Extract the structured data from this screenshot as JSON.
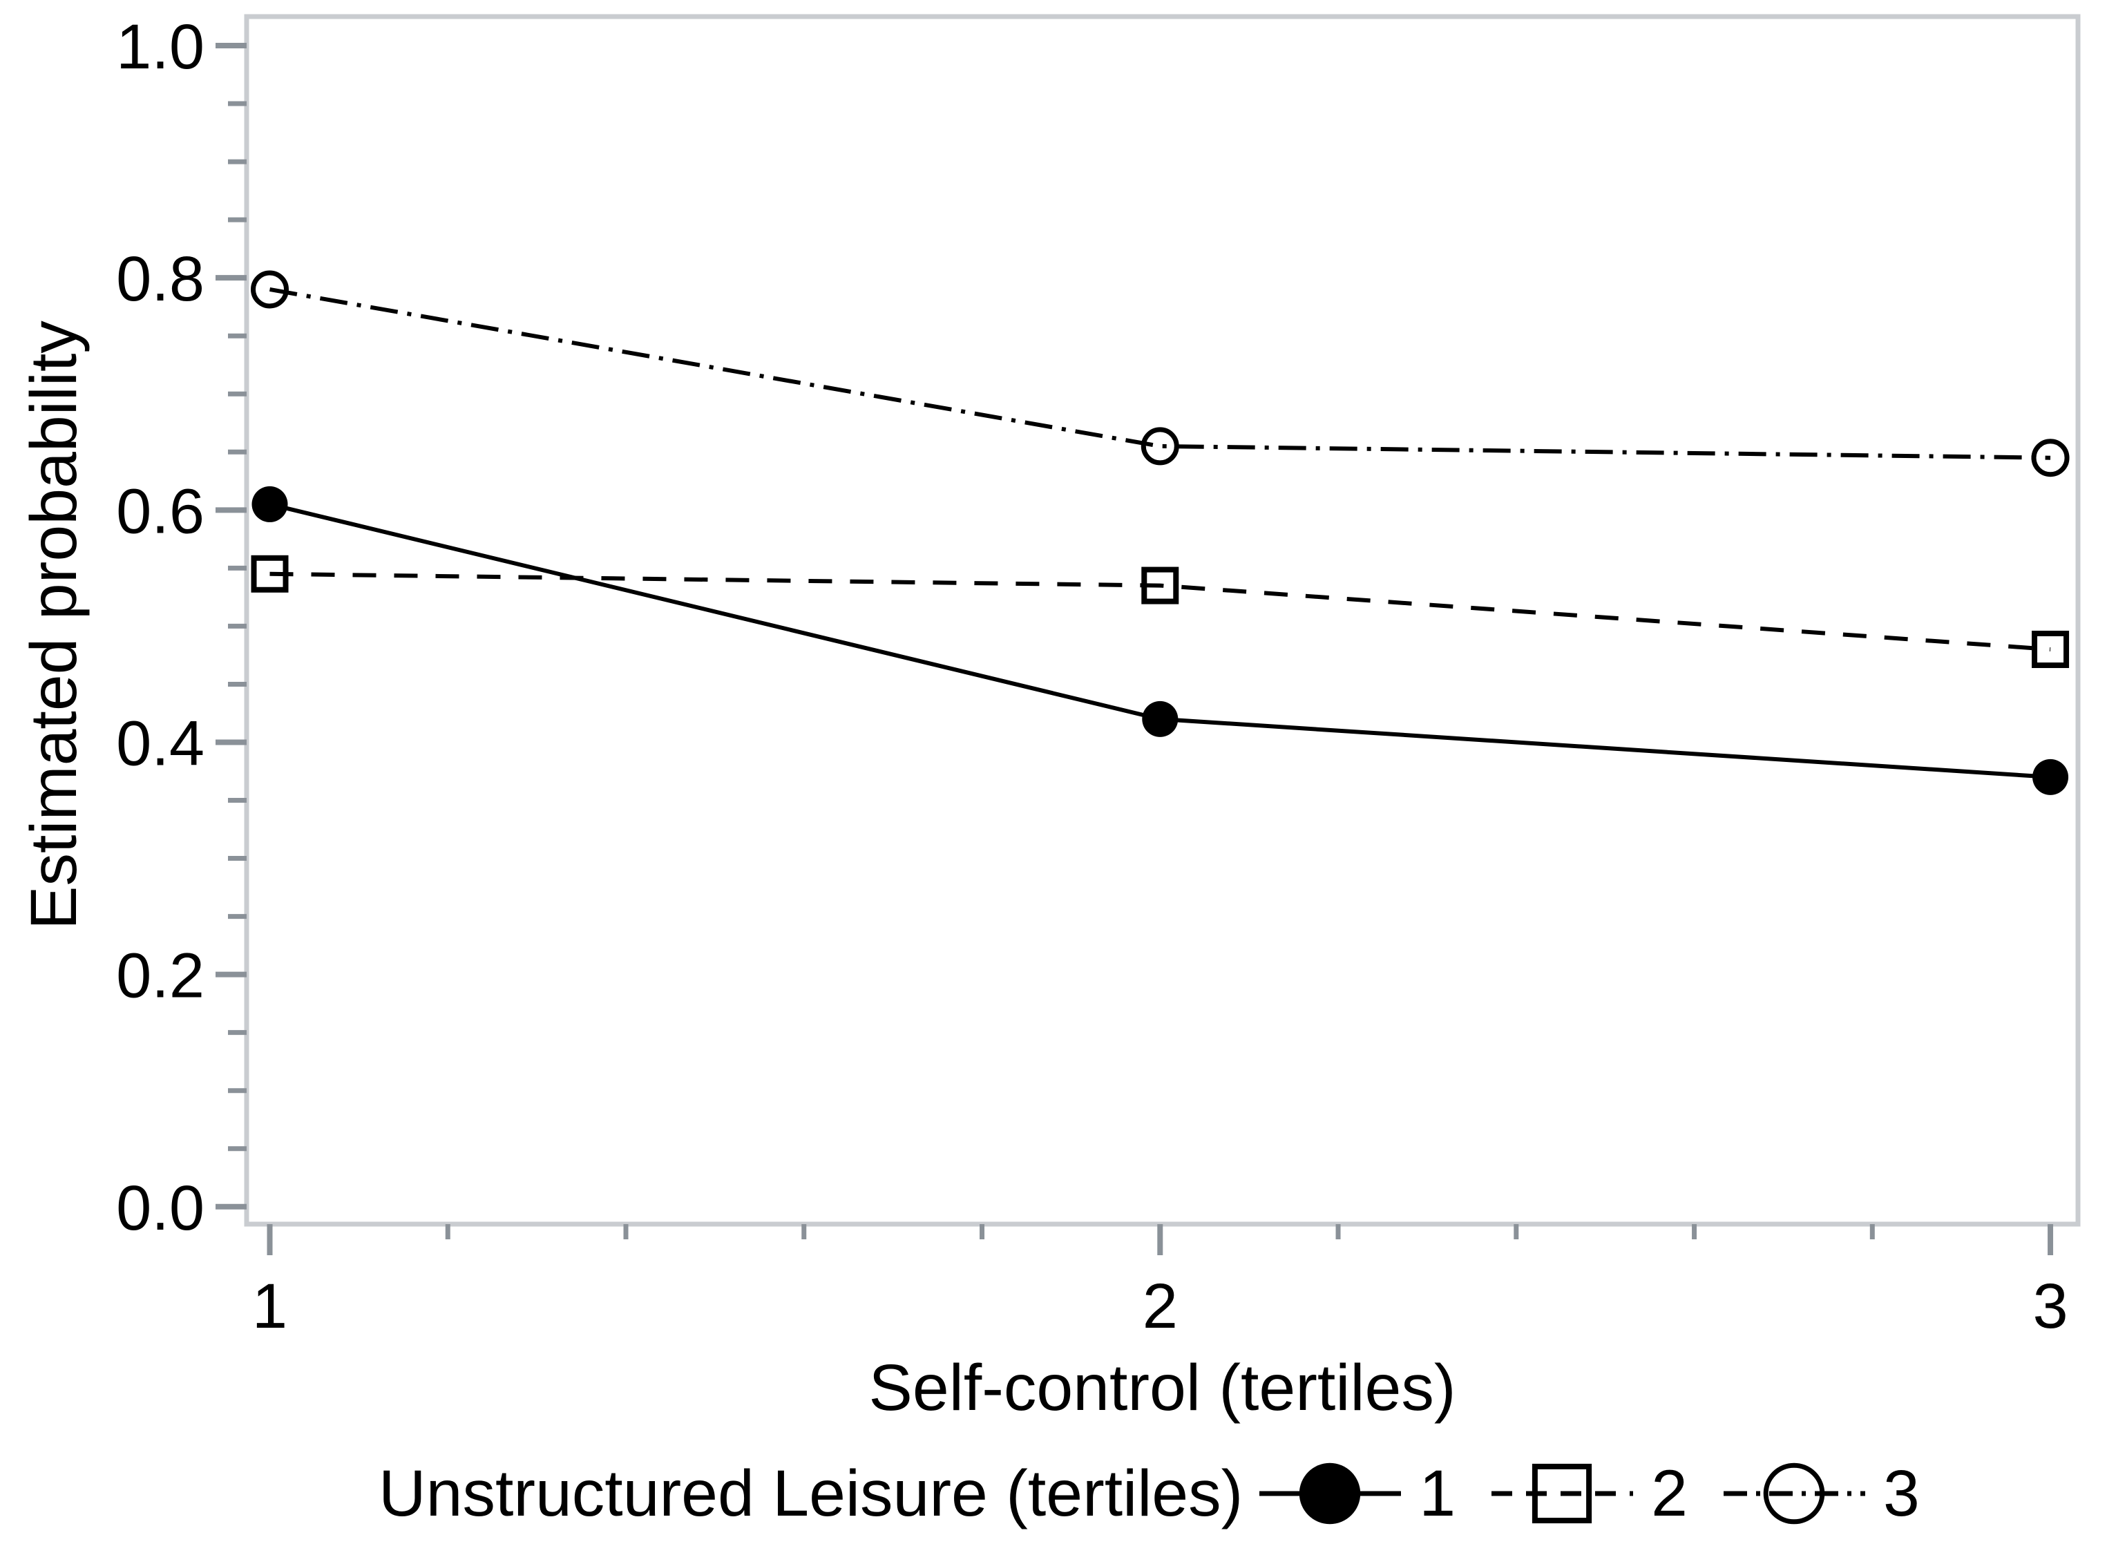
{
  "chart_data": {
    "type": "line",
    "title": "",
    "xlabel": "Self-control (tertiles)",
    "ylabel": "Estimated probability",
    "x": [
      1,
      2,
      3
    ],
    "x_tick_labels": [
      "1",
      "2",
      "3"
    ],
    "x_minor_tick_step": 0.2,
    "xlim": [
      0.974,
      3.031
    ],
    "y_major_ticks": [
      1.0,
      0.8,
      0.6,
      0.4,
      0.2,
      0.0
    ],
    "y_tick_labels": [
      "1.0",
      "0.8",
      "0.6",
      "0.4",
      "0.2",
      "0.0"
    ],
    "y_minor_tick_step": 0.05,
    "ylim": [
      -0.015,
      1.025
    ],
    "grid": false,
    "legend_title": "Unstructured Leisure (tertiles)",
    "legend_position": "bottom",
    "series": [
      {
        "name": "1",
        "marker": "filled-circle",
        "line_style": "solid",
        "values": [
          0.605,
          0.42,
          0.37
        ]
      },
      {
        "name": "2",
        "marker": "open-square",
        "line_style": "dashed",
        "values": [
          0.545,
          0.535,
          0.48
        ]
      },
      {
        "name": "3",
        "marker": "open-circle",
        "line_style": "dash-dot",
        "values": [
          0.79,
          0.655,
          0.645
        ]
      }
    ],
    "colors": {
      "series": "#000000",
      "ticks": "#8a9198",
      "axis_box": "#c9ccd0",
      "text": "#000000",
      "background": "#ffffff"
    }
  }
}
